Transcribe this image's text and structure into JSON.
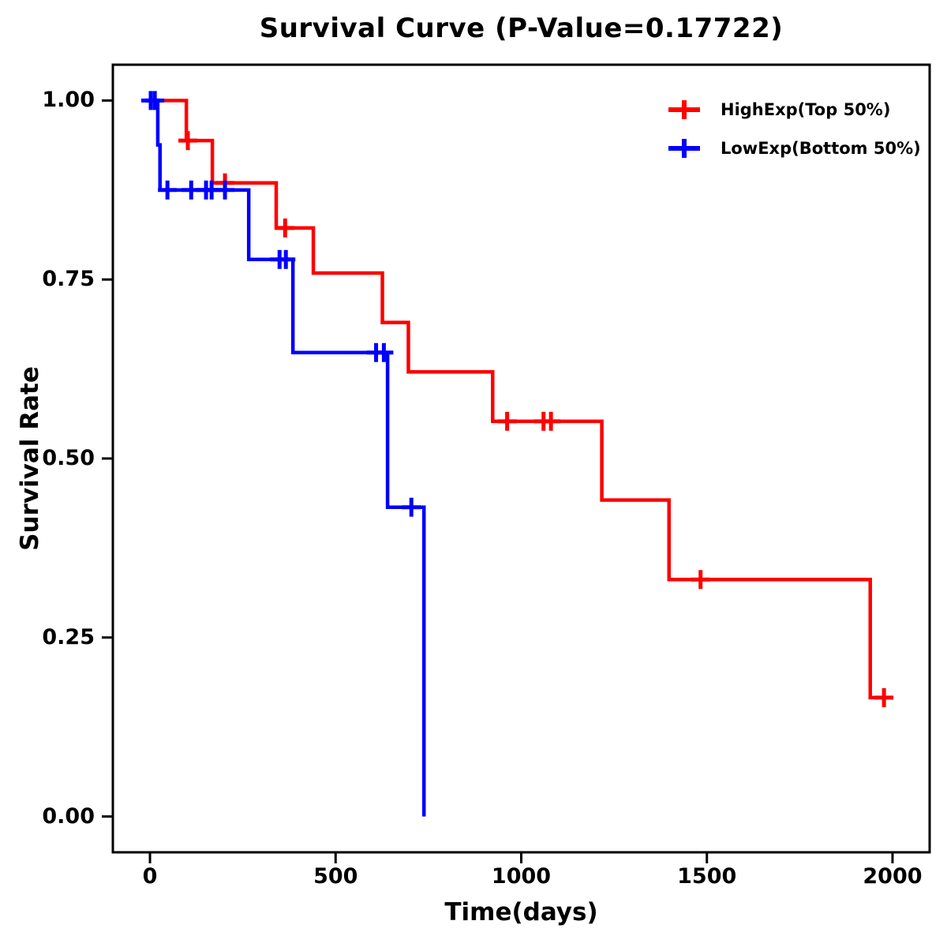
{
  "chart_data": {
    "type": "line",
    "subtype": "kaplan-meier-step-survival",
    "title": "Survival Curve (P-Value=0.17722)",
    "p_value": "0.17722",
    "xlabel": "Time(days)",
    "ylabel": "Survival Rate",
    "grid": false,
    "legend_position": "top-right",
    "axes": {
      "xlim": [
        -100,
        2100
      ],
      "ylim": [
        -0.05,
        1.05
      ],
      "x_ticks": [
        0,
        500,
        1000,
        1500,
        2000
      ],
      "x_tick_labels": [
        "0",
        "500",
        "1000",
        "1500",
        "2000"
      ],
      "y_ticks": [
        0,
        0.25,
        0.5,
        0.75,
        1.0
      ],
      "y_tick_labels": [
        "0.00",
        "0.25",
        "0.50",
        "0.75",
        "1.00"
      ]
    },
    "series": [
      {
        "id": "highexp",
        "name": "HighExp(Top 50%)",
        "color": "#ff0000",
        "start": [
          0,
          1.0
        ],
        "steps": [
          [
            98,
            0.944
          ],
          [
            168,
            0.885
          ],
          [
            340,
            0.822
          ],
          [
            440,
            0.759
          ],
          [
            626,
            0.69
          ],
          [
            696,
            0.621
          ],
          [
            923,
            0.552
          ],
          [
            1217,
            0.442
          ],
          [
            1398,
            0.331
          ],
          [
            1940,
            0.166
          ]
        ],
        "end_time": 2002,
        "censor_marks": [
          [
            102,
            0.944
          ],
          [
            202,
            0.885
          ],
          [
            364,
            0.822
          ],
          [
            962,
            0.552
          ],
          [
            1060,
            0.552
          ],
          [
            1080,
            0.552
          ],
          [
            1483,
            0.331
          ],
          [
            1977,
            0.166
          ]
        ]
      },
      {
        "id": "lowexp",
        "name": "LowExp(Bottom 50%)",
        "color": "#0000ff",
        "start": [
          0,
          1.0
        ],
        "steps": [
          [
            21,
            0.938
          ],
          [
            27,
            0.875
          ],
          [
            266,
            0.778
          ],
          [
            385,
            0.648
          ],
          [
            640,
            0.432
          ],
          [
            738,
            0.0
          ]
        ],
        "end_time": 738,
        "censor_marks": [
          [
            2,
            1.0
          ],
          [
            13,
            1.0
          ],
          [
            47,
            0.875
          ],
          [
            111,
            0.875
          ],
          [
            151,
            0.875
          ],
          [
            166,
            0.875
          ],
          [
            202,
            0.875
          ],
          [
            349,
            0.778
          ],
          [
            366,
            0.778
          ],
          [
            609,
            0.648
          ],
          [
            630,
            0.648
          ],
          [
            704,
            0.432
          ]
        ]
      }
    ]
  }
}
